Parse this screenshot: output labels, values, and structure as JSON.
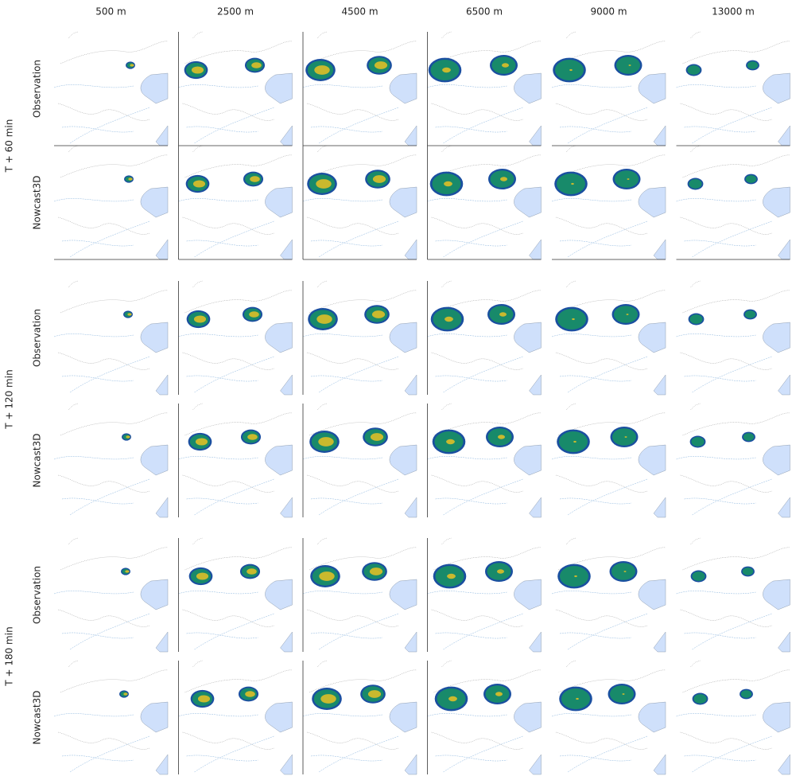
{
  "columns": [
    "500 m",
    "2500 m",
    "4500 m",
    "6500 m",
    "9000 m",
    "13000 m"
  ],
  "groups": [
    {
      "label": "T + 60 min",
      "rows": [
        "Observation",
        "Nowcast3D"
      ]
    },
    {
      "label": "T + 120 min",
      "rows": [
        "Observation",
        "Nowcast3D"
      ]
    },
    {
      "label": "T + 180 min",
      "rows": [
        "Observation",
        "Nowcast3D"
      ]
    }
  ]
}
